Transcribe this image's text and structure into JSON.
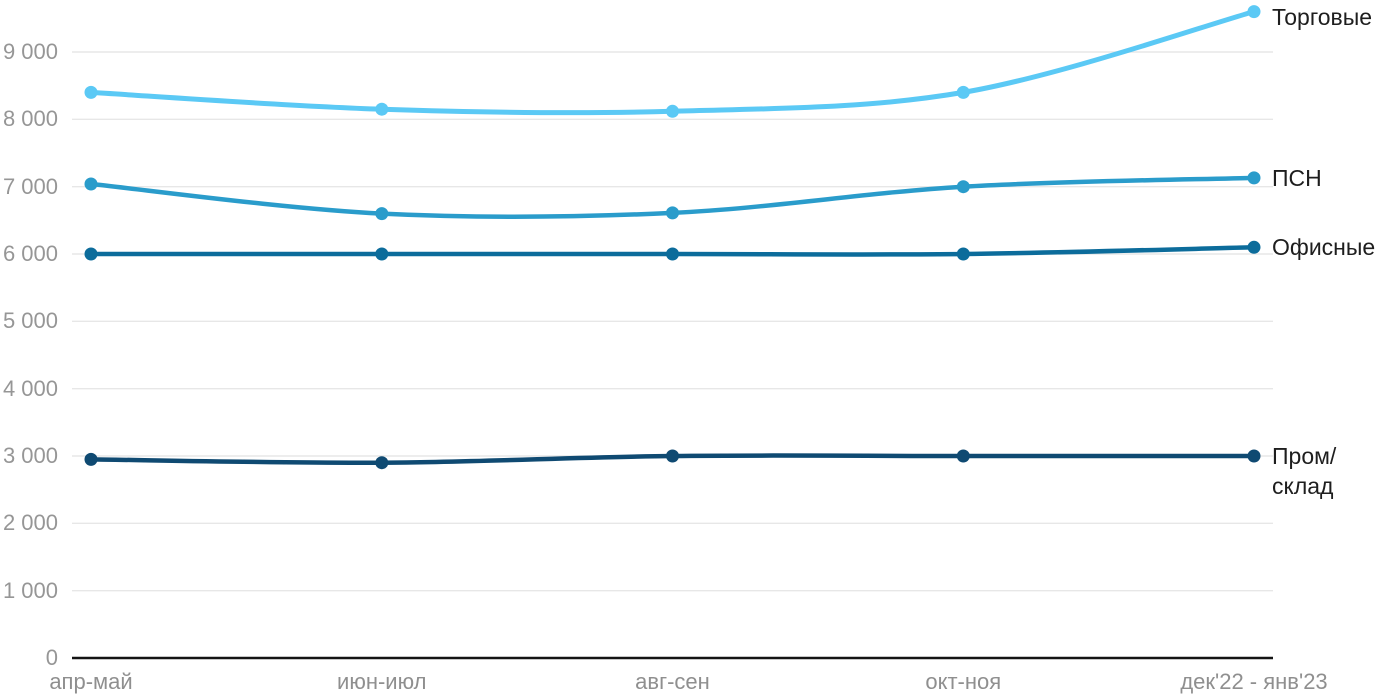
{
  "chart_data": {
    "type": "line",
    "title": "",
    "xlabel": "",
    "ylabel": "",
    "categories": [
      "апр-май",
      "июн-июл",
      "авг-сен",
      "окт-ноя",
      "дек'22 - янв'23"
    ],
    "series": [
      {
        "name": "Торговые",
        "label_lines": [
          "Торговые"
        ],
        "color": "#5BC9F5",
        "values": [
          8400,
          8150,
          8120,
          8400,
          9600
        ]
      },
      {
        "name": "ПСН",
        "label_lines": [
          "ПСН"
        ],
        "color": "#2A9CCB",
        "values": [
          7040,
          6600,
          6610,
          7000,
          7130
        ]
      },
      {
        "name": "Офисные",
        "label_lines": [
          "Офисные"
        ],
        "color": "#0C6C9B",
        "values": [
          6000,
          6000,
          6000,
          6000,
          6100
        ]
      },
      {
        "name": "Пром/склад",
        "label_lines": [
          "Пром/",
          "склад"
        ],
        "color": "#0F4A72",
        "values": [
          2950,
          2900,
          3000,
          3000,
          3000
        ]
      }
    ],
    "ylim": [
      0,
      9600
    ],
    "yticks": [
      0,
      1000,
      2000,
      3000,
      4000,
      5000,
      6000,
      7000,
      8000,
      9000
    ],
    "ytick_labels": [
      "0",
      "1 000",
      "2 000",
      "3 000",
      "4 000",
      "5 000",
      "6 000",
      "7 000",
      "8 000",
      "9 000"
    ],
    "grid": true,
    "legend_position": "right-end-labels"
  },
  "colors": {
    "grid": "#E7E7E7",
    "axis": "#141414",
    "tick_text": "#969696",
    "series_label_text": "#1E1E1E",
    "background": "#FFFFFF"
  }
}
